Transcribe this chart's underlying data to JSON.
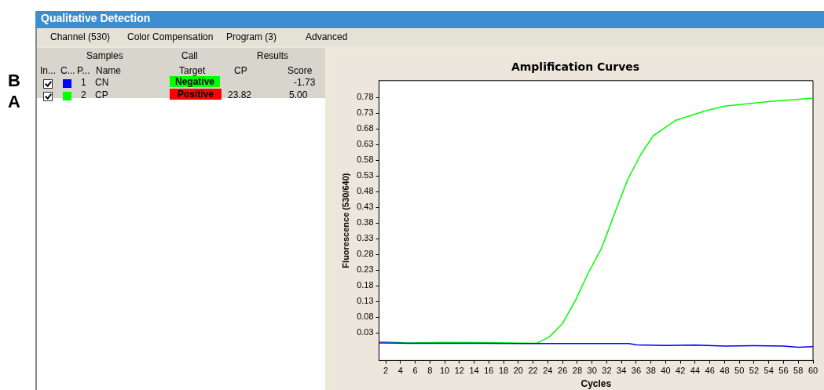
{
  "chart_data": [
    {
      "type": "other",
      "annotations": [
        "Qualitative Detection",
        "Channel (530)",
        "Color Compensation",
        "Program (3)",
        "Advanced",
        "Samples",
        "Call",
        "Results",
        "In...",
        "C...",
        "P...",
        "Name",
        "Target",
        "CP",
        "Score",
        "1",
        "CN",
        "Negative",
        "-1.73",
        "2",
        "CP",
        "Positive",
        "23.82",
        "5.00",
        "B",
        "A"
      ]
    },
    {
      "type": "line",
      "title": "Amplification Curves",
      "xlabel": "Cycles",
      "ylabel": "Fluorescence (530/640)",
      "xlim": [
        1.1,
        60
      ],
      "ylim": [
        -0.058,
        0.833
      ],
      "xticks": [
        2,
        4,
        6,
        8,
        10,
        12,
        14,
        16,
        18,
        20,
        22,
        24,
        26,
        28,
        30,
        32,
        34,
        36,
        38,
        40,
        42,
        44,
        46,
        48,
        50,
        52,
        54,
        56,
        58,
        60
      ],
      "yticks": [
        0.03,
        0.08,
        0.13,
        0.18,
        0.23,
        0.28,
        0.33,
        0.38,
        0.43,
        0.48,
        0.53,
        0.58,
        0.63,
        0.68,
        0.73,
        0.78
      ],
      "grid": false,
      "legend": false,
      "marker": "none",
      "line_style": "solid",
      "series": [
        {
          "color": "#0000ff",
          "x": [
            1.1,
            5,
            10,
            15,
            20,
            25,
            30,
            35,
            36,
            40,
            44,
            48,
            52,
            56,
            58,
            60
          ],
          "values": [
            -0.002,
            -0.003,
            -0.003,
            -0.003,
            -0.004,
            -0.004,
            -0.004,
            -0.004,
            -0.008,
            -0.01,
            -0.009,
            -0.012,
            -0.011,
            -0.012,
            -0.016,
            -0.014
          ]
        },
        {
          "color": "#00ff00",
          "x": [
            1.1,
            5,
            10,
            15,
            22.5,
            24.2,
            26,
            27.8,
            29.5,
            31.3,
            33,
            34.8,
            36.6,
            38.3,
            41.4,
            45.4,
            48,
            54.2,
            59.9
          ],
          "values": [
            0.002,
            -0.002,
            0.0,
            -0.001,
            -0.003,
            0.017,
            0.06,
            0.135,
            0.221,
            0.3,
            0.406,
            0.516,
            0.597,
            0.657,
            0.707,
            0.737,
            0.752,
            0.767,
            0.777
          ]
        }
      ]
    }
  ]
}
